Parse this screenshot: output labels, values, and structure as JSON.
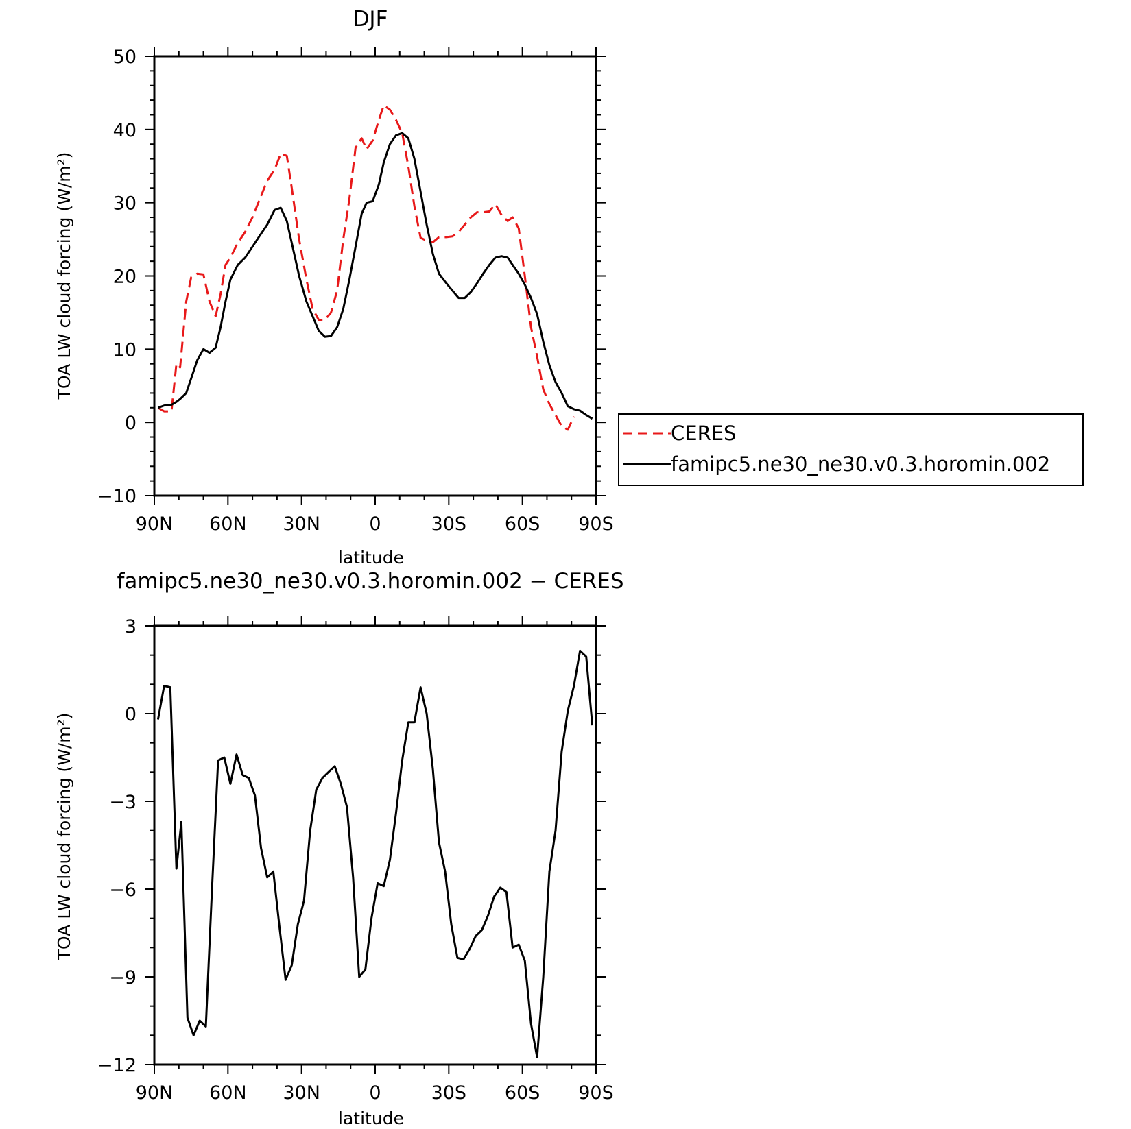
{
  "chart_data": [
    {
      "type": "line",
      "title": "DJF",
      "xlabel": "latitude",
      "ylabel": "TOA LW cloud forcing (W/m²)",
      "ylim": [
        -10,
        50
      ],
      "yticks": [
        -10,
        0,
        10,
        20,
        30,
        40,
        50
      ],
      "ytick_labels": [
        "−10",
        "0",
        "10",
        "20",
        "30",
        "40",
        "50"
      ],
      "xlim": [
        90,
        -90
      ],
      "xticks": [
        90,
        60,
        30,
        0,
        -30,
        -60,
        -90
      ],
      "xtick_labels": [
        "90N",
        "60N",
        "30N",
        "0",
        "30S",
        "60S",
        "90S"
      ],
      "x_note": "latitude in degrees; positive = N, negative = S",
      "legend": "right",
      "series": [
        {
          "name": "CERES",
          "color": "#e8191a",
          "style": "dashed",
          "x": [
            88.5,
            86,
            83,
            81,
            79.5,
            77,
            75,
            72.5,
            70,
            67.5,
            65,
            63,
            61,
            59,
            56,
            53,
            50,
            47,
            44,
            41,
            38.5,
            36,
            34,
            31,
            28,
            25.5,
            23,
            20.5,
            18,
            15.5,
            13,
            10.5,
            8,
            5.5,
            3.5,
            1,
            -1.5,
            -3.5,
            -6,
            -8.5,
            -11,
            -13.5,
            -16,
            -18.5,
            -21,
            -23.5,
            -26,
            -29,
            -31.5,
            -34,
            -36.5,
            -39,
            -41.5,
            -44,
            -46.5,
            -49,
            -51.5,
            -54,
            -56,
            -58.5,
            -61,
            -63.5,
            -66,
            -68.5,
            -71,
            -73.5,
            -76,
            -78.5,
            -81,
            -83.5,
            -86,
            -88.5
          ],
          "y": [
            2,
            1.5,
            1.5,
            8,
            7.5,
            16.5,
            19.8,
            20.3,
            20.2,
            16.5,
            14.5,
            17.5,
            21.5,
            22.5,
            24.5,
            26,
            28,
            30.5,
            33,
            34.5,
            36.7,
            36.4,
            32,
            25,
            19.5,
            15.5,
            14,
            14,
            15,
            18,
            25,
            30.5,
            37.5,
            38.8,
            37.3,
            38.5,
            41.3,
            43.3,
            42.7,
            41.3,
            39.5,
            35,
            29.5,
            25.2,
            24.8,
            24.6,
            25.3,
            25.3,
            25.4,
            26,
            27,
            28,
            28.7,
            28.7,
            28.8,
            29.8,
            28.3,
            27.5,
            28,
            26.5,
            20,
            13,
            9,
            4.5,
            2.5,
            1,
            -0.5,
            -1,
            0.8,
            null,
            null,
            null
          ]
        },
        {
          "name": "famipc5.ne30_ne30.v0.3.horomin.002",
          "color": "#000000",
          "style": "solid",
          "x": [
            88.5,
            86,
            83,
            81,
            79.5,
            77,
            75,
            72.5,
            70,
            67.5,
            65,
            63,
            61,
            59,
            56,
            53,
            50,
            47,
            44,
            41,
            38.5,
            36,
            34,
            31,
            28,
            25.5,
            23,
            20.5,
            18,
            15.5,
            13,
            10.5,
            8,
            5.5,
            3.5,
            1,
            -1.5,
            -3.5,
            -6,
            -8.5,
            -11,
            -13.5,
            -16,
            -18.5,
            -21,
            -23.5,
            -26,
            -29,
            -31.5,
            -34,
            -36.5,
            -39,
            -41.5,
            -44,
            -46.5,
            -49,
            -51.5,
            -54,
            -56,
            -58.5,
            -61,
            -63.5,
            -66,
            -68.5,
            -71,
            -73.5,
            -76,
            -78.5,
            -81,
            -83.5,
            -86,
            -88.5
          ],
          "y": [
            2,
            2.3,
            2.4,
            2.8,
            3.2,
            4,
            6,
            8.5,
            10,
            9.5,
            10.2,
            13,
            16.5,
            19.5,
            21.5,
            22.5,
            24,
            25.5,
            27,
            29,
            29.3,
            27.5,
            24.5,
            20,
            16.5,
            14.5,
            12.5,
            11.7,
            11.8,
            13,
            15.5,
            19.5,
            24,
            28.5,
            30,
            30.2,
            32.5,
            35.5,
            38,
            39.2,
            39.5,
            38.8,
            36,
            31.5,
            27,
            23,
            20.3,
            19,
            18,
            17,
            17,
            17.8,
            19,
            20.3,
            21.5,
            22.5,
            22.7,
            22.5,
            21.5,
            20.3,
            18.8,
            17,
            14.8,
            11,
            7.8,
            5.5,
            4,
            2.2,
            1.8,
            1.6,
            1,
            0.5
          ]
        }
      ]
    },
    {
      "type": "line",
      "title": "famipc5.ne30_ne30.v0.3.horomin.002 − CERES",
      "xlabel": "latitude",
      "ylabel": "TOA LW cloud forcing (W/m²)",
      "ylim": [
        -12,
        3
      ],
      "yticks": [
        -12,
        -9,
        -6,
        -3,
        0,
        3
      ],
      "ytick_labels": [
        "−12",
        "−9",
        "−6",
        "−3",
        "0",
        "3"
      ],
      "xlim": [
        90,
        -90
      ],
      "xticks": [
        90,
        60,
        30,
        0,
        -30,
        -60,
        -90
      ],
      "xtick_labels": [
        "90N",
        "60N",
        "30N",
        "0",
        "30S",
        "60S",
        "90S"
      ],
      "series": [
        {
          "color": "#000000",
          "style": "solid",
          "x": [
            88.5,
            86,
            83.5,
            81,
            79,
            76.5,
            74,
            71.5,
            69,
            66.5,
            64,
            61.5,
            59,
            56.5,
            54,
            51.5,
            49,
            46.5,
            44,
            41.5,
            39,
            36.5,
            34,
            31.5,
            29,
            26.5,
            24,
            21.5,
            19,
            16.5,
            14,
            11.5,
            9,
            6.5,
            4,
            1.5,
            -1,
            -3.5,
            -6,
            -8.5,
            -11,
            -13.5,
            -16,
            -18.5,
            -21,
            -23.5,
            -26,
            -28.5,
            -31,
            -33.5,
            -36,
            -38.5,
            -41,
            -43.5,
            -46,
            -48.5,
            -51,
            -53.5,
            -56,
            -58.5,
            -61,
            -63.5,
            -66,
            -68.5,
            -71,
            -73.5,
            -76,
            -78.5,
            -81,
            -83.5,
            -86,
            -88.5
          ],
          "y": [
            -0.2,
            0.95,
            0.9,
            -5.3,
            -3.7,
            -10.4,
            -11,
            -10.5,
            -10.7,
            -6,
            -1.6,
            -1.5,
            -2.4,
            -1.4,
            -2.1,
            -2.2,
            -2.8,
            -4.6,
            -5.6,
            -5.4,
            -7.3,
            -9.1,
            -8.6,
            -7.2,
            -6.4,
            -4,
            -2.6,
            -2.2,
            -2,
            -1.8,
            -2.4,
            -3.2,
            -5.6,
            -9,
            -8.75,
            -7,
            -5.8,
            -5.9,
            -5,
            -3.4,
            -1.6,
            -0.3,
            -0.3,
            0.9,
            0,
            -1.9,
            -4.4,
            -5.4,
            -7.2,
            -8.35,
            -8.4,
            -8.05,
            -7.6,
            -7.4,
            -6.9,
            -6.25,
            -5.95,
            -6.1,
            -8,
            -7.9,
            -8.45,
            -10.6,
            -11.75,
            -9,
            -5.4,
            -4,
            -1.3,
            0.1,
            0.95,
            2.15,
            1.95,
            -0.4
          ]
        }
      ]
    }
  ]
}
